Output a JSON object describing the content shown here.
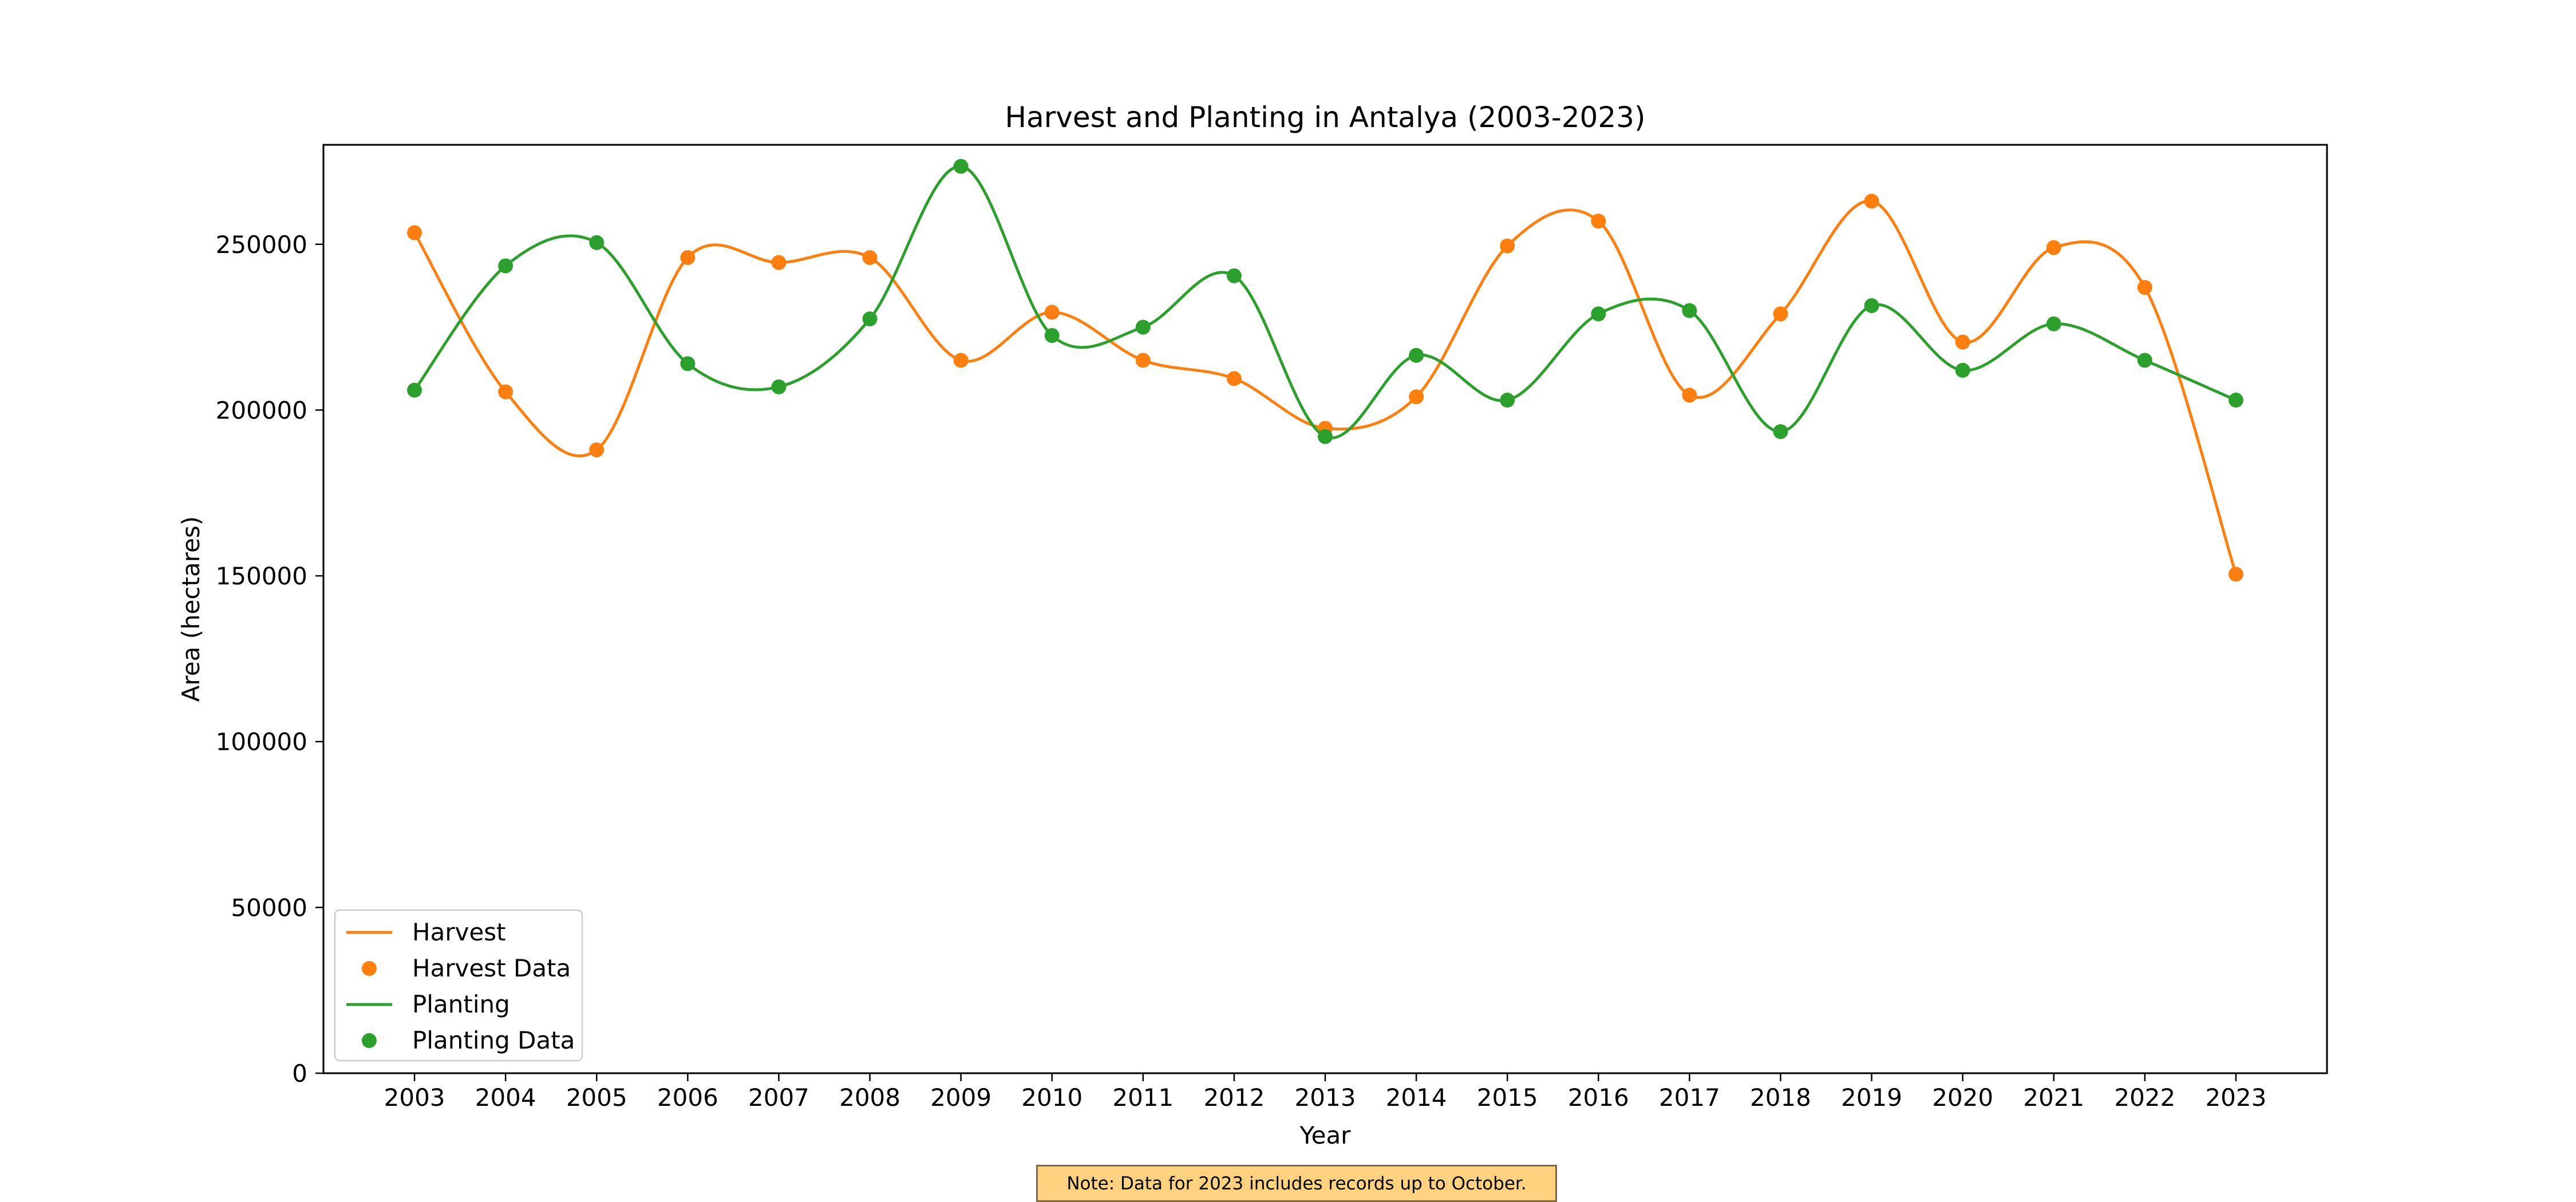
{
  "chart_data": {
    "type": "line",
    "title": "Harvest and Planting in Antalya (2003-2023)",
    "xlabel": "Year",
    "ylabel": "Area (hectares)",
    "x": [
      2003,
      2004,
      2005,
      2006,
      2007,
      2008,
      2009,
      2010,
      2011,
      2012,
      2013,
      2014,
      2015,
      2016,
      2017,
      2018,
      2019,
      2020,
      2021,
      2022,
      2023
    ],
    "ylim": [
      0,
      280000
    ],
    "yticks": [
      0,
      50000,
      100000,
      150000,
      200000,
      250000
    ],
    "series": [
      {
        "name": "Harvest",
        "color": "#ff7f0e",
        "values": [
          253500,
          205500,
          188000,
          246000,
          244500,
          246000,
          215000,
          229500,
          215000,
          209500,
          194500,
          204000,
          249500,
          257000,
          204500,
          229000,
          263000,
          220500,
          249000,
          237000,
          150500
        ]
      },
      {
        "name": "Planting",
        "color": "#2ca02c",
        "values": [
          206000,
          243500,
          250500,
          214000,
          207000,
          227500,
          273500,
          222500,
          225000,
          240500,
          192000,
          216500,
          203000,
          229000,
          230000,
          193500,
          231500,
          212000,
          226000,
          215000,
          203000
        ]
      }
    ],
    "legend": {
      "placement": "lower-left",
      "entries": [
        "Harvest",
        "Harvest Data",
        "Planting",
        "Planting Data"
      ]
    },
    "grid": false
  },
  "note": "Note: Data for 2023 includes records up to October."
}
